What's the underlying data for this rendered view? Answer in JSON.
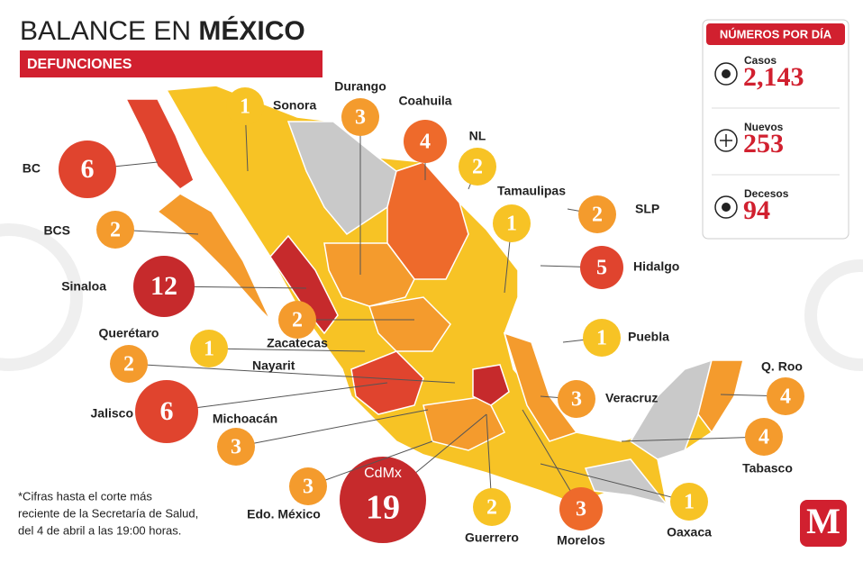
{
  "header": {
    "title_regular": "BALANCE EN",
    "title_bold": "MÉXICO",
    "subtitle": "DEFUNCIONES"
  },
  "daily": {
    "title": "NÚMEROS POR DÍA",
    "items": [
      {
        "label": "Casos",
        "value": "2,143"
      },
      {
        "label": "Nuevos",
        "value": "253"
      },
      {
        "label": "Decesos",
        "value": "94"
      }
    ]
  },
  "states": [
    {
      "name": "Sonora",
      "deaths": 1,
      "color": "#f7c325"
    },
    {
      "name": "Durango",
      "deaths": 3,
      "color": "#f49b2d"
    },
    {
      "name": "Coahuila",
      "deaths": 4,
      "color": "#ee6a2b"
    },
    {
      "name": "NL",
      "deaths": 2,
      "color": "#f7c325"
    },
    {
      "name": "Tamaulipas",
      "deaths": 1,
      "color": "#f7c325"
    },
    {
      "name": "SLP",
      "deaths": 2,
      "color": "#f49b2d"
    },
    {
      "name": "Hidalgo",
      "deaths": 5,
      "color": "#e0442e"
    },
    {
      "name": "Puebla",
      "deaths": 1,
      "color": "#f7c325"
    },
    {
      "name": "Veracruz",
      "deaths": 3,
      "color": "#f49b2d"
    },
    {
      "name": "Q. Roo",
      "deaths": 4,
      "color": "#f49b2d"
    },
    {
      "name": "Tabasco",
      "deaths": 4,
      "color": "#f49b2d"
    },
    {
      "name": "Oaxaca",
      "deaths": 1,
      "color": "#f7c325"
    },
    {
      "name": "Morelos",
      "deaths": 3,
      "color": "#ee6a2b"
    },
    {
      "name": "Guerrero",
      "deaths": 2,
      "color": "#f7c325"
    },
    {
      "name": "CdMx",
      "deaths": 19,
      "color": "#c62a2c"
    },
    {
      "name": "Edo. México",
      "deaths": 3,
      "color": "#f49b2d"
    },
    {
      "name": "Michoacán",
      "deaths": 3,
      "color": "#f49b2d"
    },
    {
      "name": "Jalisco",
      "deaths": 6,
      "color": "#e0442e"
    },
    {
      "name": "Querétaro",
      "deaths": 2,
      "color": "#f49b2d"
    },
    {
      "name": "Nayarit",
      "deaths": 1,
      "color": "#f7c325"
    },
    {
      "name": "Zacatecas",
      "deaths": 2,
      "color": "#f49b2d"
    },
    {
      "name": "Sinaloa",
      "deaths": 12,
      "color": "#c62a2c"
    },
    {
      "name": "BCS",
      "deaths": 2,
      "color": "#f49b2d"
    },
    {
      "name": "BC",
      "deaths": 6,
      "color": "#e0442e"
    }
  ],
  "note": [
    "*Cifras hasta el corte más",
    "reciente de la Secretaría de Salud,",
    "del 4 de abril a las 19:00 horas."
  ],
  "logo": "M"
}
